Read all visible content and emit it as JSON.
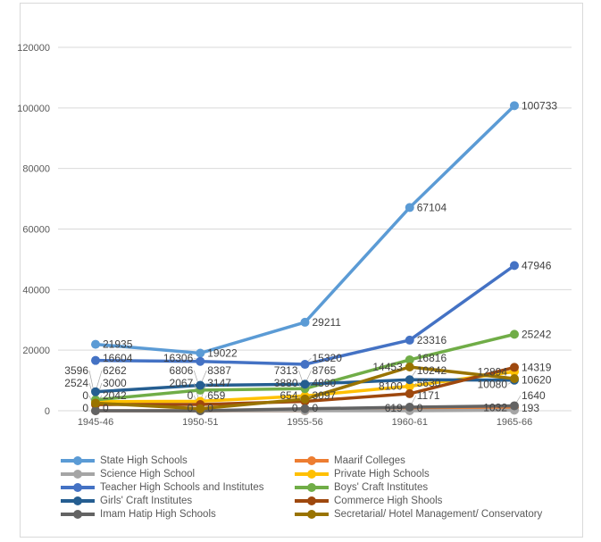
{
  "chart_data": {
    "type": "line",
    "categories": [
      "1945-46",
      "1950-51",
      "1955-56",
      "1960-61",
      "1965-66"
    ],
    "ylim": [
      0,
      120000
    ],
    "yticks": [
      0,
      20000,
      40000,
      60000,
      80000,
      100000,
      120000
    ],
    "grid": true,
    "legend_position": "bottom",
    "series": [
      {
        "name": "State High Schools",
        "color": "#5b9bd5",
        "values": [
          21935,
          19022,
          29211,
          67104,
          100733
        ]
      },
      {
        "name": "Maarif Colleges",
        "color": "#ed7d31",
        "values": [
          0,
          0,
          0,
          619,
          1032
        ]
      },
      {
        "name": "Science High School",
        "color": "#a5a5a5",
        "values": [
          0,
          0,
          0,
          0,
          193
        ]
      },
      {
        "name": "Private High Schools",
        "color": "#ffc000",
        "values": [
          3000,
          3147,
          4890,
          8100,
          12894
        ]
      },
      {
        "name": "Teacher High Schools and Institutes",
        "color": "#4472c4",
        "values": [
          16604,
          16306,
          15320,
          23316,
          47946
        ]
      },
      {
        "name": "Boys' Craft Institutes",
        "color": "#70ad47",
        "values": [
          3596,
          6806,
          7313,
          16816,
          25242
        ]
      },
      {
        "name": "Girls' Craft  Institutes",
        "color": "#255e91",
        "values": [
          6262,
          8387,
          8765,
          10242,
          10080
        ]
      },
      {
        "name": "Commerce High Shools",
        "color": "#9e480e",
        "values": [
          2042,
          2067,
          3097,
          5630,
          14319
        ]
      },
      {
        "name": "Imam Hatip High Schools",
        "color": "#636363",
        "values": [
          0,
          0,
          654,
          1171,
          1640
        ]
      },
      {
        "name": "Secretarial/ Hotel Management/ Conservatory",
        "color": "#997300",
        "values": [
          2524,
          659,
          3880,
          14453,
          10620
        ]
      }
    ]
  }
}
